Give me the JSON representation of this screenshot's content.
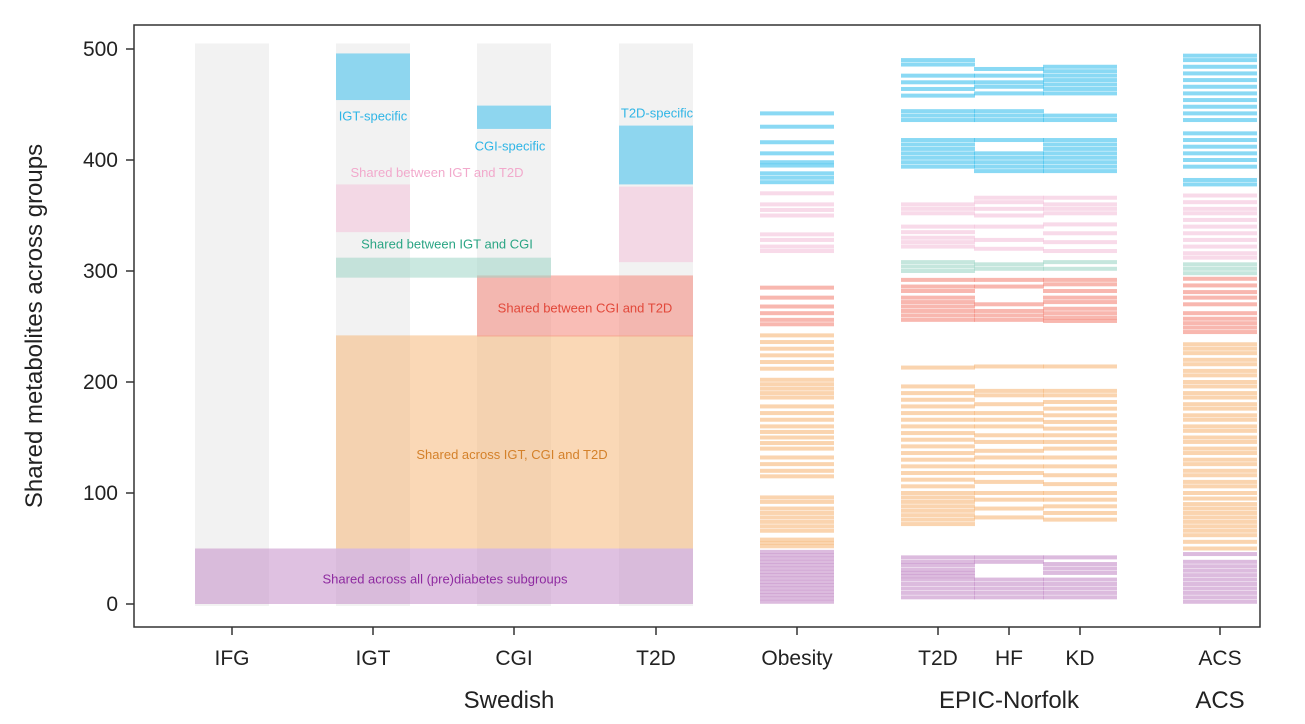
{
  "chart_data": {
    "type": "bar",
    "ylabel": "Shared metabolites across groups",
    "ylim": [
      0,
      520
    ],
    "yticks": [
      0,
      100,
      200,
      300,
      400,
      500
    ],
    "grid": false,
    "colors": {
      "specific": "#3cc0ec",
      "shared_igt_t2d": "#f4c2da",
      "shared_igt_cgi": "#9ed6c6",
      "shared_cgi_t2d": "#f4877a",
      "shared_igt_cgi_t2d": "#f6b87a",
      "shared_all": "#c58ec8",
      "background": "#e6e6e6"
    },
    "groups": [
      {
        "name": "Swedish",
        "columns": [
          "IFG",
          "IGT",
          "CGI",
          "T2D"
        ]
      },
      {
        "name": "EPIC-Norfolk",
        "columns": [
          "T2D",
          "HF",
          "KD"
        ]
      },
      {
        "name": "ACS",
        "columns": [
          "ACS"
        ]
      }
    ],
    "swedish_columns": [
      {
        "name": "IFG",
        "total": 505
      },
      {
        "name": "IGT",
        "total": 505
      },
      {
        "name": "CGI",
        "total": 505
      },
      {
        "name": "T2D",
        "total": 505
      }
    ],
    "swedish_blocks": [
      {
        "category": "shared_all",
        "label": "Shared across all (pre)diabetes subgroups",
        "columns": [
          "IFG",
          "IGT",
          "CGI",
          "T2D"
        ],
        "y0": 0,
        "y1": 50
      },
      {
        "category": "shared_igt_cgi_t2d",
        "label": "Shared across IGT, CGI and T2D",
        "columns": [
          "IGT",
          "CGI",
          "T2D"
        ],
        "y0": 50,
        "y1": 242
      },
      {
        "category": "shared_cgi_t2d",
        "label": "Shared between CGI and T2D",
        "columns": [
          "CGI",
          "T2D"
        ],
        "y0": 241,
        "y1": 296
      },
      {
        "category": "shared_igt_cgi",
        "label": "Shared between IGT and CGI",
        "columns": [
          "IGT",
          "CGI"
        ],
        "y0": 294,
        "y1": 312
      },
      {
        "category": "shared_igt_t2d",
        "label": "Shared between IGT and T2D",
        "columns": [
          "IGT"
        ],
        "y0": 335,
        "y1": 378
      },
      {
        "category": "shared_igt_t2d",
        "label": "",
        "columns": [
          "T2D"
        ],
        "y0": 308,
        "y1": 376
      },
      {
        "category": "specific",
        "label": "IGT-specific",
        "columns": [
          "IGT"
        ],
        "y0": 454,
        "y1": 496
      },
      {
        "category": "specific",
        "label": "CGI-specific",
        "columns": [
          "CGI"
        ],
        "y0": 428,
        "y1": 449
      },
      {
        "category": "specific",
        "label": "T2D-specific",
        "columns": [
          "T2D"
        ],
        "y0": 378,
        "y1": 431
      }
    ],
    "replication_lines": [
      {
        "column": "Obesity",
        "category": "shared_all",
        "y": [
          2,
          5,
          8,
          11,
          14,
          17,
          20,
          23,
          26,
          29,
          32,
          35,
          38,
          41,
          44,
          47
        ]
      },
      {
        "column": "Obesity",
        "category": "shared_igt_cgi_t2d",
        "y": [
          52,
          55,
          58,
          66,
          70,
          74,
          78,
          82,
          86,
          92,
          96,
          115,
          120,
          126,
          132,
          140,
          145,
          150,
          155,
          160,
          166,
          172,
          178,
          186,
          190,
          194,
          198,
          202,
          212,
          218,
          224,
          230,
          236,
          242
        ]
      },
      {
        "column": "Obesity",
        "category": "shared_cgi_t2d",
        "y": [
          252,
          256,
          262,
          268,
          276,
          285
        ]
      },
      {
        "column": "Obesity",
        "category": "shared_igt_t2d",
        "y": [
          318,
          322,
          328,
          333,
          350,
          355,
          360,
          370
        ]
      },
      {
        "column": "Obesity",
        "category": "specific",
        "y": [
          380,
          384,
          388,
          395,
          398,
          406,
          416,
          430,
          442
        ]
      },
      {
        "column": "EPIC T2D",
        "category": "shared_all",
        "y": [
          6,
          10,
          14,
          18,
          22,
          25,
          28,
          31,
          35,
          38,
          42
        ]
      },
      {
        "column": "EPIC T2D",
        "category": "shared_igt_cgi_t2d",
        "y": [
          72,
          76,
          80,
          84,
          88,
          92,
          96,
          100,
          106,
          112,
          118,
          124,
          130,
          136,
          142,
          148,
          154,
          160,
          166,
          172,
          178,
          184,
          190,
          196,
          213
        ]
      },
      {
        "column": "EPIC T2D",
        "category": "shared_cgi_t2d",
        "y": [
          256,
          260,
          264,
          268,
          272,
          276,
          282,
          286,
          292
        ]
      },
      {
        "column": "EPIC T2D",
        "category": "shared_igt_cgi",
        "y": [
          300,
          304,
          308
        ]
      },
      {
        "column": "EPIC T2D",
        "category": "shared_igt_t2d",
        "y": [
          322,
          326,
          330,
          335,
          340,
          352,
          356,
          360
        ]
      },
      {
        "column": "EPIC T2D",
        "category": "specific",
        "y": [
          394,
          398,
          402,
          406,
          410,
          414,
          418,
          436,
          440,
          444,
          458,
          464,
          470,
          476,
          486,
          490
        ]
      },
      {
        "column": "HF",
        "category": "shared_all",
        "y": [
          6,
          10,
          14,
          18,
          22,
          38,
          42
        ]
      },
      {
        "column": "HF",
        "category": "shared_igt_cgi_t2d",
        "y": [
          78,
          86,
          94,
          100,
          110,
          118,
          124,
          132,
          138,
          146,
          152,
          160,
          166,
          172,
          180,
          188,
          192,
          214
        ]
      },
      {
        "column": "HF",
        "category": "shared_cgi_t2d",
        "y": [
          256,
          260,
          264,
          270,
          286,
          292
        ]
      },
      {
        "column": "HF",
        "category": "shared_igt_cgi",
        "y": [
          302,
          306
        ]
      },
      {
        "column": "HF",
        "category": "shared_igt_t2d",
        "y": [
          320,
          328,
          340,
          350,
          356,
          362,
          366
        ]
      },
      {
        "column": "HF",
        "category": "specific",
        "y": [
          390,
          394,
          398,
          402,
          406,
          418,
          436,
          440,
          444,
          460,
          466,
          470,
          476,
          482
        ]
      },
      {
        "column": "KD",
        "category": "shared_all",
        "y": [
          6,
          10,
          14,
          18,
          22,
          28,
          32,
          36,
          42
        ]
      },
      {
        "column": "KD",
        "category": "shared_igt_cgi_t2d",
        "y": [
          76,
          82,
          88,
          94,
          100,
          108,
          116,
          124,
          132,
          140,
          146,
          152,
          158,
          164,
          170,
          176,
          182,
          188,
          192,
          214
        ]
      },
      {
        "column": "KD",
        "category": "shared_cgi_t2d",
        "y": [
          255,
          258,
          262,
          266,
          272,
          276,
          282,
          288,
          292
        ]
      },
      {
        "column": "KD",
        "category": "shared_igt_cgi",
        "y": [
          302,
          308
        ]
      },
      {
        "column": "KD",
        "category": "shared_igt_t2d",
        "y": [
          318,
          326,
          334,
          342,
          352,
          356,
          360,
          366
        ]
      },
      {
        "column": "KD",
        "category": "specific",
        "y": [
          390,
          394,
          398,
          402,
          406,
          410,
          414,
          418,
          436,
          440,
          460,
          464,
          468,
          472,
          476,
          480,
          484
        ]
      },
      {
        "column": "ACS",
        "category": "shared_all",
        "y": [
          2,
          6,
          10,
          14,
          18,
          22,
          26,
          30,
          34,
          38,
          45
        ]
      },
      {
        "column": "ACS",
        "category": "shared_igt_cgi_t2d",
        "y": [
          50,
          56,
          62,
          66,
          70,
          74,
          78,
          82,
          86,
          90,
          95,
          100,
          106,
          110,
          116,
          120,
          126,
          130,
          136,
          140,
          146,
          150,
          156,
          160,
          166,
          170,
          176,
          180,
          186,
          190,
          196,
          200,
          206,
          210,
          216,
          220,
          226,
          230,
          234
        ]
      },
      {
        "column": "ACS",
        "category": "shared_cgi_t2d",
        "y": [
          245,
          249,
          253,
          257,
          262,
          270,
          276,
          281,
          287,
          293
        ]
      },
      {
        "column": "ACS",
        "category": "shared_igt_cgi",
        "y": [
          298,
          302,
          306
        ]
      },
      {
        "column": "ACS",
        "category": "shared_igt_t2d",
        "y": [
          312,
          316,
          322,
          328,
          334,
          340,
          346,
          352,
          356,
          362,
          368
        ]
      },
      {
        "column": "ACS",
        "category": "specific",
        "y": [
          378,
          382,
          394,
          400,
          406,
          412,
          418,
          424,
          436,
          442,
          448,
          454,
          460,
          466,
          472,
          478,
          484,
          490,
          494
        ]
      }
    ]
  }
}
